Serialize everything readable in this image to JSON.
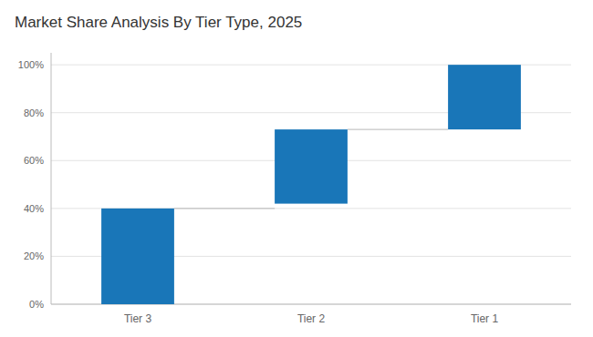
{
  "chart_data": {
    "type": "waterfall",
    "title": "Market Share Analysis By Tier Type, 2025",
    "categories": [
      "Tier 3",
      "Tier 2",
      "Tier 1"
    ],
    "values": [
      40,
      31,
      27
    ],
    "bottoms": [
      0,
      42,
      73
    ],
    "color": "#1976b8",
    "ylim": [
      0,
      105
    ],
    "yticks": [
      {
        "value": 0,
        "label": "0%"
      },
      {
        "value": 20,
        "label": "20%"
      },
      {
        "value": 40,
        "label": "40%"
      },
      {
        "value": 60,
        "label": "60%"
      },
      {
        "value": 80,
        "label": "80%"
      },
      {
        "value": 100,
        "label": "100%"
      }
    ],
    "grid": true
  }
}
